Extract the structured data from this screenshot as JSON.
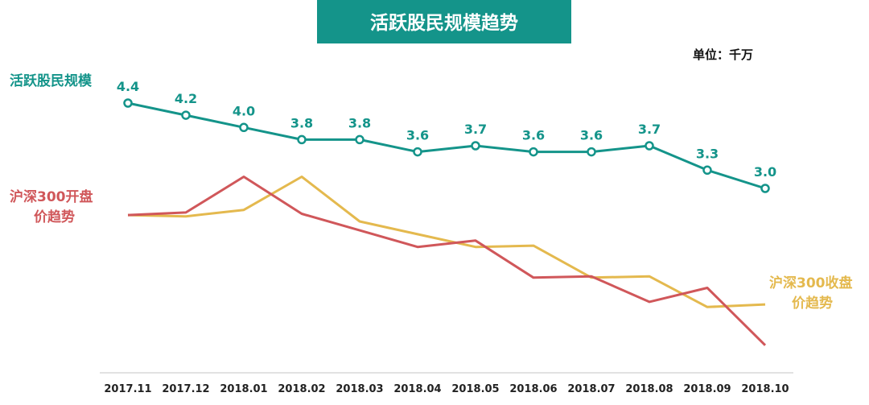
{
  "chart_data": {
    "type": "line",
    "title": "活跃股民规模趋势",
    "unit_label": "单位：千万",
    "categories": [
      "2017.11",
      "2017.12",
      "2018.01",
      "2018.02",
      "2018.03",
      "2018.04",
      "2018.05",
      "2018.06",
      "2018.07",
      "2018.08",
      "2018.09",
      "2018.10"
    ],
    "series": [
      {
        "name": "活跃股民规模",
        "color": "#14948a",
        "values": [
          4.4,
          4.2,
          4.0,
          3.8,
          3.8,
          3.6,
          3.7,
          3.6,
          3.6,
          3.7,
          3.3,
          3.0
        ],
        "labels": [
          "4.4",
          "4.2",
          "4.0",
          "3.8",
          "3.8",
          "3.6",
          "3.7",
          "3.6",
          "3.6",
          "3.7",
          "3.3",
          "3.0"
        ],
        "markers": true
      },
      {
        "name_lines": [
          "沪深300开盘",
          "价趋势"
        ],
        "color": "#d0575a",
        "relative_levels": [
          0.54,
          0.56,
          0.84,
          0.55,
          0.42,
          0.29,
          0.34,
          0.05,
          0.06,
          -0.14,
          -0.03,
          -0.48
        ]
      },
      {
        "name_lines": [
          "沪深300收盘",
          "价趋势"
        ],
        "color": "#e4b94e",
        "relative_levels": [
          0.54,
          0.53,
          0.58,
          0.84,
          0.49,
          0.39,
          0.29,
          0.3,
          0.05,
          0.06,
          -0.18,
          -0.16
        ]
      }
    ],
    "ylim": [
      2.9,
      4.45
    ],
    "relative_range": [
      -0.5,
      0.9
    ],
    "grid": false,
    "legend": "inline-left-and-right"
  }
}
